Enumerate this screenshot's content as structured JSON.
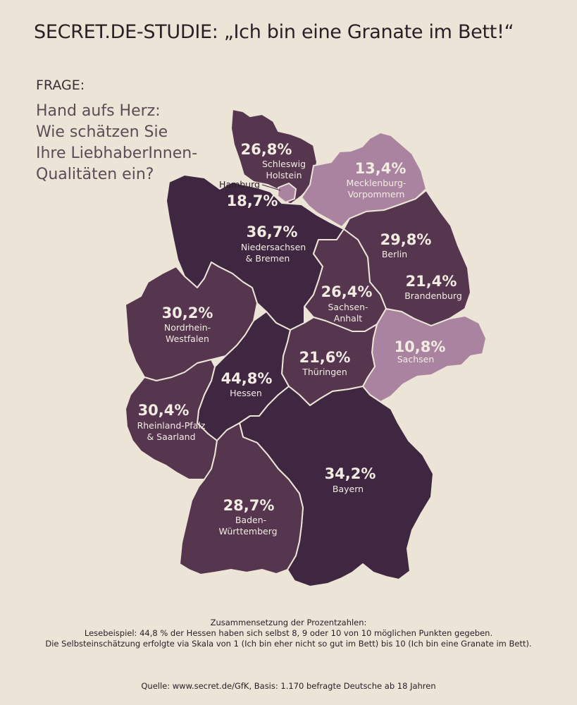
{
  "title": "SECRET.DE-STUDIE: „Ich bin eine Granate im Bett!“",
  "question": {
    "label": "FRAGE:",
    "lines": [
      "Hand aufs Herz:",
      "Wie schätzen Sie",
      "Ihre LiebhaberInnen-",
      "Qualitäten ein?"
    ]
  },
  "colors": {
    "dark": "#3f2741",
    "medium": "#56354f",
    "light": "#a9839f",
    "borders": "#ece4d6"
  },
  "regions": [
    {
      "id": "schleswig-holstein",
      "value": "26,8%",
      "name_lines": [
        "Schleswig",
        "Holstein"
      ],
      "shade": "medium"
    },
    {
      "id": "hamburg",
      "value": "18,7%",
      "name_lines": [
        "Hamburg"
      ],
      "shade": "light"
    },
    {
      "id": "mecklenburg-vorpommern",
      "value": "13,4%",
      "name_lines": [
        "Mecklenburg-",
        "Vorpommern"
      ],
      "shade": "light"
    },
    {
      "id": "niedersachsen-bremen",
      "value": "36,7%",
      "name_lines": [
        "Niedersachsen",
        "& Bremen"
      ],
      "shade": "dark"
    },
    {
      "id": "berlin",
      "value": "29,8%",
      "name_lines": [
        "Berlin"
      ],
      "shade": "medium"
    },
    {
      "id": "brandenburg",
      "value": "21,4%",
      "name_lines": [
        "Brandenburg"
      ],
      "shade": "medium"
    },
    {
      "id": "sachsen-anhalt",
      "value": "26,4%",
      "name_lines": [
        "Sachsen-",
        "Anhalt"
      ],
      "shade": "medium"
    },
    {
      "id": "nordrhein-westfalen",
      "value": "30,2%",
      "name_lines": [
        "Nordrhein-",
        "Westfalen"
      ],
      "shade": "medium"
    },
    {
      "id": "sachsen",
      "value": "10,8%",
      "name_lines": [
        "Sachsen"
      ],
      "shade": "light"
    },
    {
      "id": "thueringen",
      "value": "21,6%",
      "name_lines": [
        "Thüringen"
      ],
      "shade": "medium"
    },
    {
      "id": "hessen",
      "value": "44,8%",
      "name_lines": [
        "Hessen"
      ],
      "shade": "dark"
    },
    {
      "id": "rheinland-pfalz-saarland",
      "value": "30,4%",
      "name_lines": [
        "Rheinland-Pfalz",
        "& Saarland"
      ],
      "shade": "medium"
    },
    {
      "id": "bayern",
      "value": "34,2%",
      "name_lines": [
        "Bayern"
      ],
      "shade": "dark"
    },
    {
      "id": "baden-wuerttemberg",
      "value": "28,7%",
      "name_lines": [
        "Baden-",
        "Württemberg"
      ],
      "shade": "medium"
    }
  ],
  "footer": {
    "heading": "Zusammensetzung der Prozentzahlen:",
    "line1": "Lesebeispiel: 44,8 % der Hessen haben sich selbst 8, 9 oder 10 von 10 möglichen Punkten gegeben.",
    "line2": "Die Selbsteinschätzung erfolgte via Skala von 1 (Ich bin eher nicht so gut im Bett) bis 10 (Ich bin eine Granate im Bett).",
    "source": "Quelle: www.secret.de/GfK, Basis: 1.170 befragte Deutsche ab 18 Jahren"
  }
}
